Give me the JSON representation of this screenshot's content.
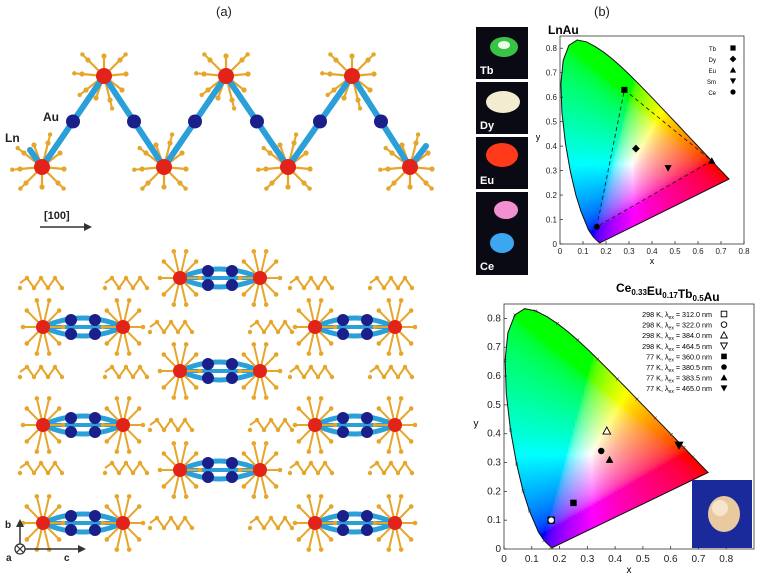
{
  "panel_a": {
    "label": "(a)",
    "atom_ln": "Ln",
    "atom_au": "Au",
    "direction": "[100]",
    "axis_a": "a",
    "axis_b": "b",
    "axis_c": "c"
  },
  "panel_b": {
    "label": "(b)",
    "swatches": [
      {
        "name": "Tb",
        "color": "#3fd64a"
      },
      {
        "name": "Dy",
        "color": "#f3ecd0"
      },
      {
        "name": "Eu",
        "color": "#ff3a1a"
      },
      {
        "name": "Sm",
        "color": "#f28fd1"
      },
      {
        "name": "Ce",
        "color": "#3aa7f0"
      }
    ]
  },
  "chart_data": [
    {
      "type": "scatter",
      "title": "LnAu",
      "xlabel": "x",
      "ylabel": "y",
      "xlim": [
        0,
        0.8
      ],
      "ylim": [
        0,
        0.85
      ],
      "xticks": [
        "0",
        "0.1",
        "0.2",
        "0.3",
        "0.4",
        "0.5",
        "0.6",
        "0.7",
        "0.8"
      ],
      "yticks": [
        "0",
        "0.1",
        "0.2",
        "0.3",
        "0.4",
        "0.5",
        "0.6",
        "0.7",
        "0.8"
      ],
      "legend_position": "top-right",
      "series": [
        {
          "name": "Tb",
          "marker": "square",
          "x": 0.28,
          "y": 0.63
        },
        {
          "name": "Dy",
          "marker": "diamond",
          "x": 0.33,
          "y": 0.39
        },
        {
          "name": "Eu",
          "marker": "triangle-up",
          "x": 0.66,
          "y": 0.34
        },
        {
          "name": "Sm",
          "marker": "triangle-down",
          "x": 0.47,
          "y": 0.31
        },
        {
          "name": "Ce",
          "marker": "circle",
          "x": 0.16,
          "y": 0.07
        }
      ]
    },
    {
      "type": "scatter",
      "title": "Ce0.33Eu0.17Tb0.5Au",
      "title_parts": [
        {
          "text": "Ce",
          "sub": "0.33"
        },
        {
          "text": "Eu",
          "sub": "0.17"
        },
        {
          "text": "Tb",
          "sub": "0.5"
        },
        {
          "text": "Au",
          "sub": ""
        }
      ],
      "xlabel": "x",
      "ylabel": "y",
      "xlim": [
        0,
        0.9
      ],
      "ylim": [
        0,
        0.85
      ],
      "xticks": [
        "0",
        "0.1",
        "0.2",
        "0.3",
        "0.4",
        "0.5",
        "0.6",
        "0.7",
        "0.8"
      ],
      "yticks": [
        "0",
        "0.1",
        "0.2",
        "0.3",
        "0.4",
        "0.5",
        "0.6",
        "0.7",
        "0.8"
      ],
      "legend_position": "top-right",
      "series": [
        {
          "name": "298 K, λex = 312.0 nm",
          "temp": "298 K",
          "wl": "312.0 nm",
          "marker": "square-open",
          "x": 0.17,
          "y": 0.1
        },
        {
          "name": "298 K, λex = 322.0 nm",
          "temp": "298 K",
          "wl": "322.0 nm",
          "marker": "circle-open",
          "x": 0.17,
          "y": 0.1
        },
        {
          "name": "298 K, λex = 384.0 nm",
          "temp": "298 K",
          "wl": "384.0 nm",
          "marker": "triangle-up-open",
          "x": 0.37,
          "y": 0.41
        },
        {
          "name": "298 K, λex = 464.5 nm",
          "temp": "298 K",
          "wl": "464.5 nm",
          "marker": "triangle-down-open",
          "x": 0.63,
          "y": 0.36
        },
        {
          "name": "77 K, λex = 360.0 nm",
          "temp": "77 K",
          "wl": "360.0 nm",
          "marker": "square",
          "x": 0.25,
          "y": 0.16
        },
        {
          "name": "77 K, λex = 380.5 nm",
          "temp": "77 K",
          "wl": "380.5 nm",
          "marker": "circle",
          "x": 0.35,
          "y": 0.34
        },
        {
          "name": "77 K, λex = 383.5 nm",
          "temp": "77 K",
          "wl": "383.5 nm",
          "marker": "triangle-up",
          "x": 0.38,
          "y": 0.31
        },
        {
          "name": "77 K, λex = 465.0 nm",
          "temp": "77 K",
          "wl": "465.0 nm",
          "marker": "triangle-down",
          "x": 0.63,
          "y": 0.36
        }
      ]
    }
  ]
}
